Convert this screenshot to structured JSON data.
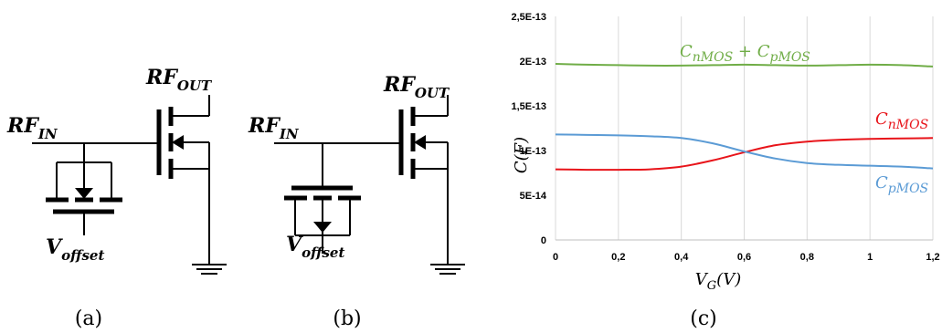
{
  "circuits": [
    {
      "caption": "(a)",
      "rf_in": "RF",
      "rf_in_sub": "IN",
      "rf_out": "RF",
      "rf_out_sub": "OUT",
      "v_offset": "V",
      "v_offset_sub": "offset"
    },
    {
      "caption": "(b)",
      "rf_in": "RF",
      "rf_in_sub": "IN",
      "rf_out": "RF",
      "rf_out_sub": "OUT",
      "v_offset": "V",
      "v_offset_sub": "offset"
    }
  ],
  "chart_caption": "(c)",
  "chart_data": {
    "type": "line",
    "xlabel": "V",
    "xlabel_sub": "G",
    "xlabel_unit": "(V)",
    "ylabel": "C(F)",
    "xlim": [
      0,
      1.2
    ],
    "ylim": [
      0,
      2.5e-13
    ],
    "x_ticks": [
      "0",
      "0,2",
      "0,4",
      "0,6",
      "0,8",
      "1",
      "1,2"
    ],
    "y_ticks": [
      "0",
      "5E-14",
      "1E-13",
      "1,5E-13",
      "2E-13",
      "2,5E-13"
    ],
    "grid": "vertical",
    "series": [
      {
        "name": "C",
        "name_sub": "nMOS",
        "color": "#e8141a",
        "x": [
          0,
          0.1,
          0.2,
          0.3,
          0.4,
          0.5,
          0.6,
          0.7,
          0.8,
          0.9,
          1.0,
          1.1,
          1.2
        ],
        "y": [
          7.9e-14,
          7.85e-14,
          7.85e-14,
          7.9e-14,
          8.2e-14,
          8.9e-14,
          9.8e-14,
          1.06e-13,
          1.1e-13,
          1.12e-13,
          1.13e-13,
          1.135e-13,
          1.14e-13
        ]
      },
      {
        "name": "C",
        "name_sub": "pMOS",
        "color": "#5b9bd5",
        "x": [
          0,
          0.1,
          0.2,
          0.3,
          0.4,
          0.5,
          0.6,
          0.7,
          0.8,
          0.9,
          1.0,
          1.1,
          1.2
        ],
        "y": [
          1.18e-13,
          1.175e-13,
          1.17e-13,
          1.16e-13,
          1.14e-13,
          1.08e-13,
          9.9e-14,
          9.1e-14,
          8.6e-14,
          8.4e-14,
          8.3e-14,
          8.2e-14,
          8e-14
        ]
      },
      {
        "name": "C",
        "name_sub": "nMOS",
        "name2": "C",
        "name2_sub": "pMOS",
        "color": "#70ad47",
        "x": [
          0,
          0.1,
          0.2,
          0.3,
          0.4,
          0.5,
          0.6,
          0.7,
          0.8,
          0.9,
          1.0,
          1.1,
          1.2
        ],
        "y": [
          1.97e-13,
          1.96e-13,
          1.955e-13,
          1.95e-13,
          1.95e-13,
          1.955e-13,
          1.96e-13,
          1.955e-13,
          1.95e-13,
          1.955e-13,
          1.96e-13,
          1.955e-13,
          1.94e-13
        ]
      }
    ]
  }
}
